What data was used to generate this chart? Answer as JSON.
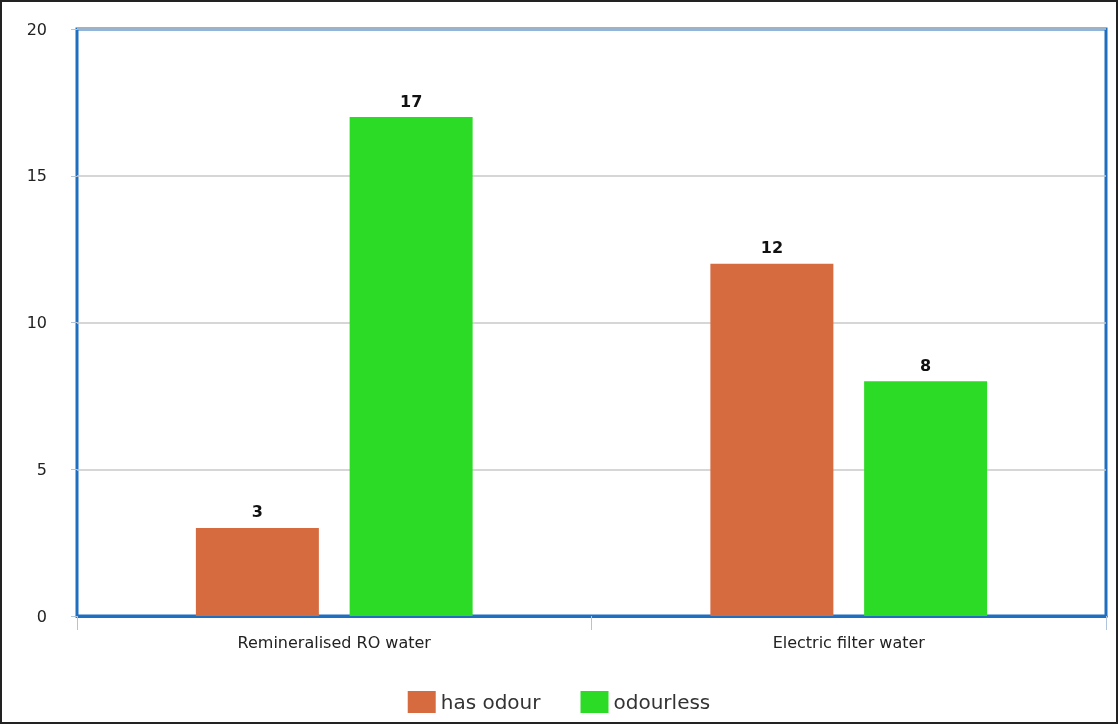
{
  "chart_data": {
    "type": "bar",
    "categories": [
      "Remineralised RO water",
      "Electric filter water"
    ],
    "series": [
      {
        "name": "has odour",
        "color": "#d66b40",
        "values": [
          3,
          12
        ]
      },
      {
        "name": "odourless",
        "color": "#2cdb26",
        "values": [
          17,
          8
        ]
      }
    ],
    "ylim": [
      0,
      20
    ],
    "yticks": [
      0,
      5,
      10,
      15,
      20
    ],
    "grid": "y",
    "legend": "bottom",
    "data_labels": true
  }
}
